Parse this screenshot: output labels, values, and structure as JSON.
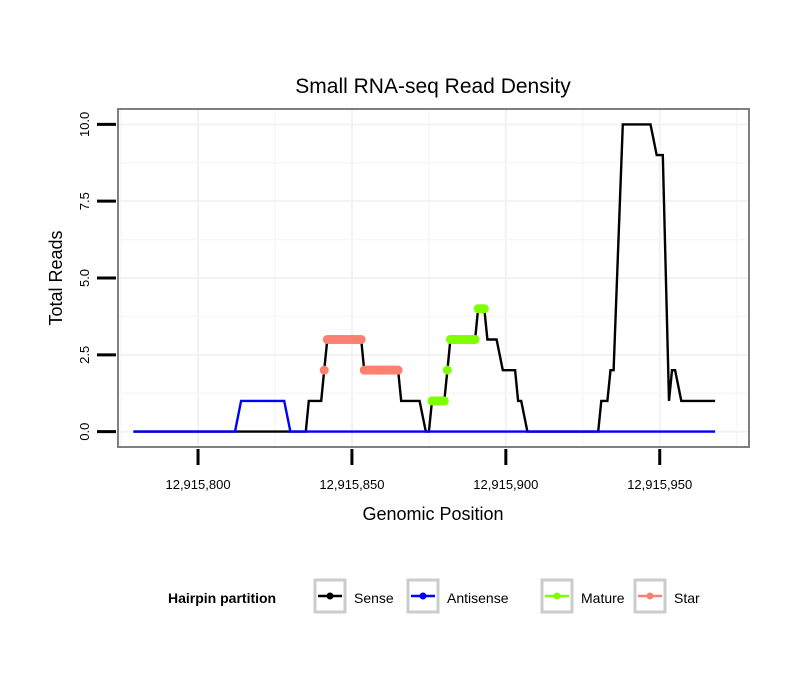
{
  "chart_data": {
    "type": "line",
    "title": "Small RNA-seq Read Density",
    "xlabel": "Genomic Position",
    "ylabel": "Total Reads",
    "xlim": [
      12915774,
      12915979
    ],
    "ylim": [
      -0.5,
      10.5
    ],
    "x_ticks": [
      12915800,
      12915850,
      12915900,
      12915950
    ],
    "x_tick_labels": [
      "12,915,800",
      "12,915,850",
      "12,915,900",
      "12,915,950"
    ],
    "y_ticks": [
      0,
      2.5,
      5,
      7.5,
      10
    ],
    "y_tick_labels": [
      "0.0",
      "2.5",
      "5.0",
      "7.5",
      "10.0"
    ],
    "grid": true,
    "legend": {
      "title": "Hairpin partition",
      "position": "bottom",
      "entries": [
        {
          "label": "Sense",
          "color": "#000000"
        },
        {
          "label": "Antisense",
          "color": "#0000ff"
        },
        {
          "label": "Mature",
          "color": "#7fff00"
        },
        {
          "label": "Star",
          "color": "#fa8072"
        }
      ]
    },
    "series": [
      {
        "name": "Sense",
        "color": "#000000",
        "kind": "line",
        "steps": [
          [
            12915779,
            12915835,
            0
          ],
          [
            12915836,
            12915840,
            1
          ],
          [
            12915841,
            12915841,
            2
          ],
          [
            12915842,
            12915853,
            3
          ],
          [
            12915854,
            12915865,
            2
          ],
          [
            12915866,
            12915872,
            1
          ],
          [
            12915874,
            12915875,
            0
          ],
          [
            12915876,
            12915880,
            1
          ],
          [
            12915881,
            12915881,
            2
          ],
          [
            12915882,
            12915890,
            3
          ],
          [
            12915891,
            12915893,
            4
          ],
          [
            12915894,
            12915897,
            3
          ],
          [
            12915899,
            12915903,
            2
          ],
          [
            12915904,
            12915905,
            1
          ],
          [
            12915907,
            12915930,
            0
          ],
          [
            12915931,
            12915933,
            1
          ],
          [
            12915934,
            12915935,
            2
          ],
          [
            12915938,
            12915947,
            10
          ],
          [
            12915949,
            12915951,
            9
          ],
          [
            12915953,
            12915953,
            1
          ],
          [
            12915954,
            12915955,
            2
          ],
          [
            12915957,
            12915968,
            1
          ]
        ]
      },
      {
        "name": "Antisense",
        "color": "#0000ff",
        "kind": "line",
        "steps": [
          [
            12915779,
            12915812,
            0
          ],
          [
            12915814,
            12915828,
            1
          ],
          [
            12915830,
            12915968,
            0
          ]
        ]
      },
      {
        "name": "Star",
        "color": "#fa8072",
        "kind": "points",
        "steps": [
          [
            12915841,
            12915841,
            2
          ],
          [
            12915842,
            12915853,
            3
          ],
          [
            12915854,
            12915865,
            2
          ]
        ]
      },
      {
        "name": "Mature",
        "color": "#7fff00",
        "kind": "points",
        "steps": [
          [
            12915876,
            12915880,
            1
          ],
          [
            12915881,
            12915881,
            2
          ],
          [
            12915882,
            12915890,
            3
          ],
          [
            12915891,
            12915893,
            4
          ]
        ]
      }
    ]
  }
}
